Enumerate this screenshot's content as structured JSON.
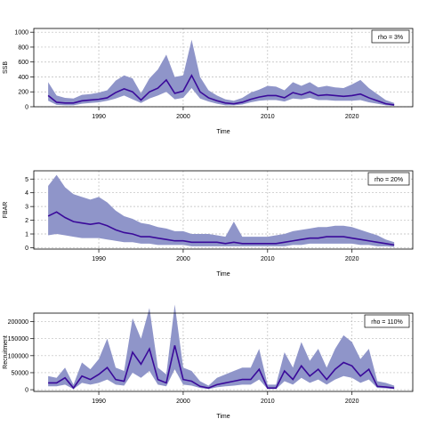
{
  "chart_data": [
    {
      "type": "line",
      "xlabel": "Time",
      "ylabel": "SSB",
      "legend": "rho = 3%",
      "legend_position": "top-right",
      "grid": true,
      "xlim": [
        1982.3,
        2027.2
      ],
      "ylim": [
        0,
        1050
      ],
      "x_ticks": [
        1990,
        2000,
        2010,
        2020
      ],
      "y_ticks": [
        0,
        200,
        400,
        600,
        800,
        1000
      ],
      "band_color": "#8f95c9",
      "line_color": "#3a0a9a",
      "series": [
        {
          "x": [
            1984,
            1985,
            1986,
            1987,
            1988,
            1989,
            1990,
            1991,
            1992,
            1993,
            1994,
            1995,
            1996,
            1997,
            1998,
            1999,
            2000,
            2001,
            2002,
            2003,
            2004,
            2005,
            2006,
            2007,
            2008,
            2009,
            2010,
            2011,
            2012,
            2013,
            2014,
            2015,
            2016,
            2017,
            2018,
            2019,
            2020,
            2021,
            2022,
            2023,
            2024,
            2025
          ],
          "median": [
            150,
            60,
            50,
            50,
            80,
            90,
            100,
            120,
            190,
            240,
            200,
            90,
            200,
            250,
            360,
            180,
            210,
            420,
            200,
            120,
            80,
            50,
            40,
            60,
            100,
            130,
            150,
            150,
            120,
            190,
            160,
            200,
            150,
            160,
            150,
            140,
            150,
            170,
            120,
            80,
            40,
            25
          ],
          "lower": [
            80,
            25,
            20,
            20,
            40,
            50,
            60,
            80,
            110,
            150,
            100,
            50,
            110,
            150,
            200,
            100,
            120,
            250,
            110,
            70,
            40,
            20,
            20,
            30,
            60,
            80,
            90,
            90,
            70,
            110,
            100,
            120,
            90,
            90,
            80,
            80,
            80,
            90,
            60,
            40,
            20,
            10
          ],
          "upper": [
            330,
            150,
            120,
            110,
            160,
            170,
            190,
            220,
            350,
            420,
            380,
            180,
            380,
            500,
            700,
            400,
            420,
            900,
            400,
            220,
            150,
            100,
            80,
            120,
            190,
            230,
            280,
            270,
            220,
            330,
            280,
            330,
            260,
            280,
            260,
            250,
            300,
            360,
            250,
            170,
            90,
            50
          ]
        }
      ]
    },
    {
      "type": "line",
      "xlabel": "Time",
      "ylabel": "FBAR",
      "legend": "rho = 20%",
      "legend_position": "top-right",
      "grid": true,
      "xlim": [
        1982.3,
        2027.2
      ],
      "ylim": [
        -0.1,
        5.6
      ],
      "x_ticks": [
        1990,
        2000,
        2010,
        2020
      ],
      "y_ticks": [
        0,
        1,
        2,
        3,
        4,
        5
      ],
      "band_color": "#8f95c9",
      "line_color": "#3a0a9a",
      "series": [
        {
          "x": [
            1984,
            1985,
            1986,
            1987,
            1988,
            1989,
            1990,
            1991,
            1992,
            1993,
            1994,
            1995,
            1996,
            1997,
            1998,
            1999,
            2000,
            2001,
            2002,
            2003,
            2004,
            2005,
            2006,
            2007,
            2008,
            2009,
            2010,
            2011,
            2012,
            2013,
            2014,
            2015,
            2016,
            2017,
            2018,
            2019,
            2020,
            2021,
            2022,
            2023,
            2024,
            2025
          ],
          "median": [
            2.3,
            2.6,
            2.2,
            1.9,
            1.8,
            1.7,
            1.8,
            1.6,
            1.3,
            1.1,
            1.0,
            0.8,
            0.8,
            0.7,
            0.6,
            0.5,
            0.5,
            0.4,
            0.4,
            0.4,
            0.4,
            0.3,
            0.4,
            0.3,
            0.3,
            0.3,
            0.3,
            0.3,
            0.4,
            0.5,
            0.6,
            0.7,
            0.7,
            0.8,
            0.8,
            0.8,
            0.7,
            0.6,
            0.5,
            0.4,
            0.3,
            0.2
          ],
          "lower": [
            0.9,
            1.0,
            0.9,
            0.8,
            0.7,
            0.7,
            0.7,
            0.6,
            0.5,
            0.4,
            0.4,
            0.3,
            0.3,
            0.2,
            0.2,
            0.2,
            0.2,
            0.1,
            0.1,
            0.1,
            0.1,
            0.1,
            0.1,
            0.1,
            0.1,
            0.1,
            0.1,
            0.1,
            0.1,
            0.2,
            0.2,
            0.3,
            0.3,
            0.3,
            0.3,
            0.3,
            0.3,
            0.2,
            0.2,
            0.1,
            0.1,
            0.05
          ],
          "upper": [
            4.5,
            5.3,
            4.4,
            3.9,
            3.7,
            3.5,
            3.7,
            3.3,
            2.7,
            2.3,
            2.1,
            1.8,
            1.7,
            1.5,
            1.4,
            1.2,
            1.2,
            1.0,
            1.0,
            1.0,
            0.9,
            0.8,
            1.9,
            0.8,
            0.8,
            0.8,
            0.8,
            0.9,
            1.0,
            1.2,
            1.3,
            1.4,
            1.5,
            1.5,
            1.6,
            1.6,
            1.5,
            1.3,
            1.1,
            0.9,
            0.6,
            0.4
          ]
        }
      ]
    },
    {
      "type": "line",
      "xlabel": "Time",
      "ylabel": "Recruitment",
      "legend": "rho = 110%",
      "legend_position": "top-right",
      "grid": true,
      "xlim": [
        1982.3,
        2027.2
      ],
      "ylim": [
        -5000,
        225000
      ],
      "x_ticks": [
        1990,
        2000,
        2010,
        2020
      ],
      "y_ticks": [
        0,
        50000,
        100000,
        150000,
        200000
      ],
      "y_tick_labels": [
        "0",
        "50000",
        "100000",
        "150000",
        "200000"
      ],
      "band_color": "#8f95c9",
      "line_color": "#3a0a9a",
      "series": [
        {
          "x": [
            1984,
            1985,
            1986,
            1987,
            1988,
            1989,
            1990,
            1991,
            1992,
            1993,
            1994,
            1995,
            1996,
            1997,
            1998,
            1999,
            2000,
            2001,
            2002,
            2003,
            2004,
            2005,
            2006,
            2007,
            2008,
            2009,
            2010,
            2011,
            2012,
            2013,
            2014,
            2015,
            2016,
            2017,
            2018,
            2019,
            2020,
            2021,
            2022,
            2023,
            2024,
            2025
          ],
          "median": [
            20000,
            20000,
            35000,
            5000,
            40000,
            30000,
            45000,
            65000,
            30000,
            25000,
            110000,
            75000,
            120000,
            30000,
            20000,
            130000,
            30000,
            25000,
            10000,
            5000,
            15000,
            20000,
            25000,
            30000,
            30000,
            60000,
            5000,
            5000,
            55000,
            30000,
            70000,
            40000,
            60000,
            30000,
            60000,
            80000,
            70000,
            40000,
            60000,
            10000,
            8000,
            5000
          ],
          "lower": [
            10000,
            10000,
            15000,
            2000,
            20000,
            15000,
            20000,
            30000,
            15000,
            12000,
            50000,
            35000,
            55000,
            15000,
            10000,
            60000,
            15000,
            12000,
            5000,
            2000,
            7000,
            10000,
            12000,
            15000,
            15000,
            30000,
            2000,
            2000,
            25000,
            15000,
            35000,
            20000,
            30000,
            15000,
            30000,
            40000,
            35000,
            20000,
            30000,
            5000,
            4000,
            2000
          ],
          "upper": [
            40000,
            35000,
            65000,
            15000,
            80000,
            60000,
            90000,
            150000,
            65000,
            55000,
            210000,
            150000,
            240000,
            65000,
            45000,
            250000,
            65000,
            55000,
            25000,
            12000,
            35000,
            45000,
            55000,
            65000,
            65000,
            120000,
            15000,
            15000,
            110000,
            65000,
            140000,
            85000,
            120000,
            65000,
            120000,
            160000,
            140000,
            90000,
            120000,
            25000,
            20000,
            12000
          ]
        }
      ]
    }
  ]
}
